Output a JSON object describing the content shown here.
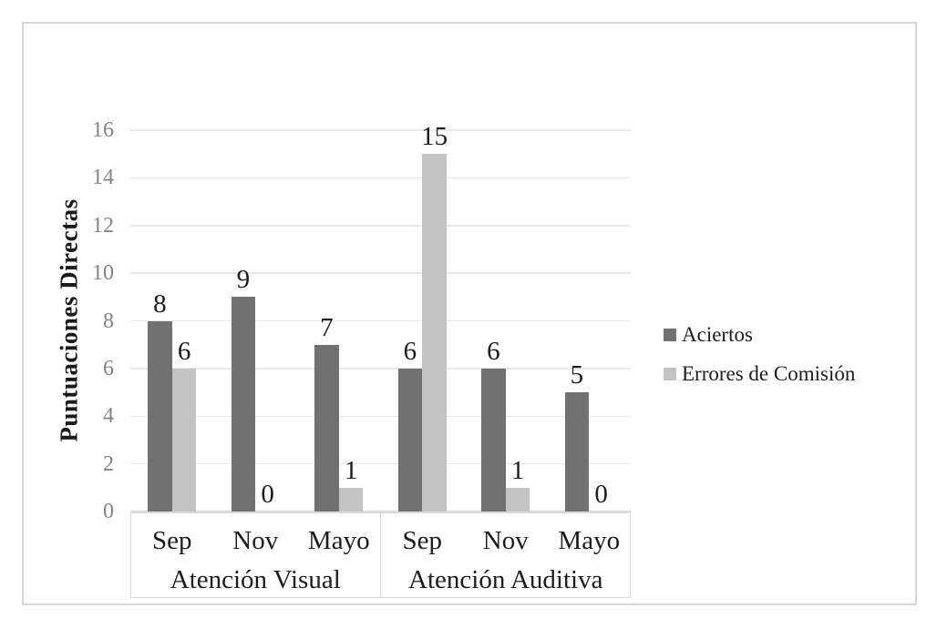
{
  "chart_data": {
    "type": "bar",
    "title": "",
    "ylabel": "Puntuaciones Directas",
    "xlabel": "",
    "ylim": [
      0,
      16
    ],
    "yticks": [
      0,
      2,
      4,
      6,
      8,
      10,
      12,
      14,
      16
    ],
    "grid": "horizontal",
    "legend_position": "right",
    "groups": [
      {
        "label": "Atención Visual",
        "categories": [
          "Sep",
          "Nov",
          "Mayo"
        ]
      },
      {
        "label": "Atención Auditiva",
        "categories": [
          "Sep",
          "Nov",
          "Mayo"
        ]
      }
    ],
    "series": [
      {
        "name": "Aciertos",
        "color": "#717171",
        "values": [
          8,
          9,
          7,
          6,
          6,
          5
        ]
      },
      {
        "name": "Errores de Comisión",
        "color": "#c3c3c3",
        "values": [
          6,
          0,
          1,
          15,
          1,
          0
        ]
      }
    ],
    "data_labels": true
  },
  "colors": {
    "frame_border": "#d7d7d7",
    "gridline": "#e9e9e9",
    "axis_box_border": "#d9d9d9",
    "tick_text": "#838383",
    "label_text": "#1c1c1c"
  }
}
